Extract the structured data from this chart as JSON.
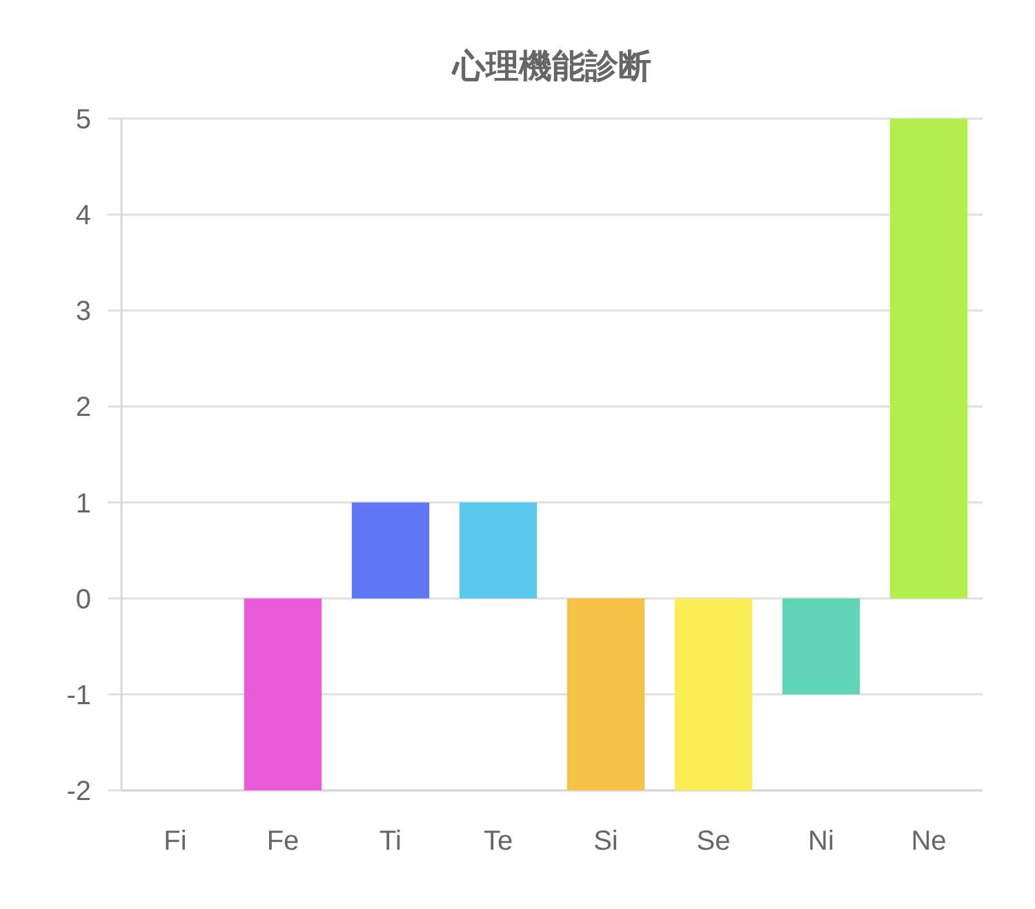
{
  "chart_data": {
    "type": "bar",
    "title": "心理機能診断",
    "categories": [
      "Fi",
      "Fe",
      "Ti",
      "Te",
      "Si",
      "Se",
      "Ni",
      "Ne"
    ],
    "values": [
      0,
      -2,
      1,
      1,
      -2,
      -2,
      -1,
      5
    ],
    "colors": [
      "#f36b6b",
      "#e95bd9",
      "#6077f5",
      "#5bc8ee",
      "#f4c244",
      "#fbee55",
      "#60d5b5",
      "#b2ef4c"
    ],
    "ylim": [
      -2,
      5
    ],
    "yticks": [
      -2,
      -1,
      0,
      1,
      2,
      3,
      4,
      5
    ],
    "grid": "y"
  }
}
